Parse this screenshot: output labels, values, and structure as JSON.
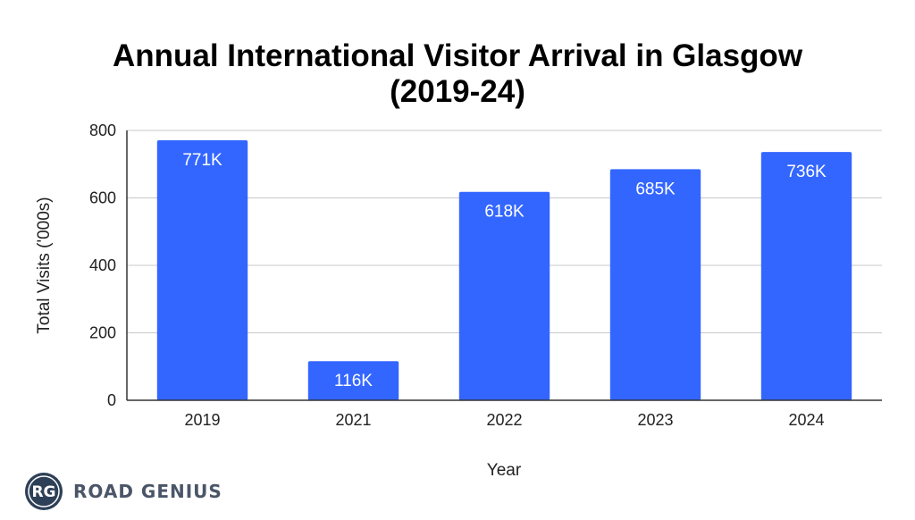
{
  "chart_data": {
    "type": "bar",
    "title": "Annual International Visitor Arrival in Glasgow",
    "subtitle": "(2019-24)",
    "xlabel": "Year",
    "ylabel": "Total Visits ('000s)",
    "categories": [
      "2019",
      "2021",
      "2022",
      "2023",
      "2024"
    ],
    "values": [
      771,
      116,
      618,
      685,
      736
    ],
    "data_labels": [
      "771K",
      "116K",
      "618K",
      "685K",
      "736K"
    ],
    "ylim": [
      0,
      800
    ],
    "yticks": [
      0,
      200,
      400,
      600,
      800
    ],
    "ytick_labels": [
      "0",
      "200",
      "400",
      "600",
      "800"
    ],
    "grid": true,
    "bar_color": "#3366FF"
  },
  "branding": {
    "logo_initials": "RG",
    "name": "ROAD GENIUS",
    "logo_color": "#2E4057",
    "text_color": "#4A5668"
  }
}
